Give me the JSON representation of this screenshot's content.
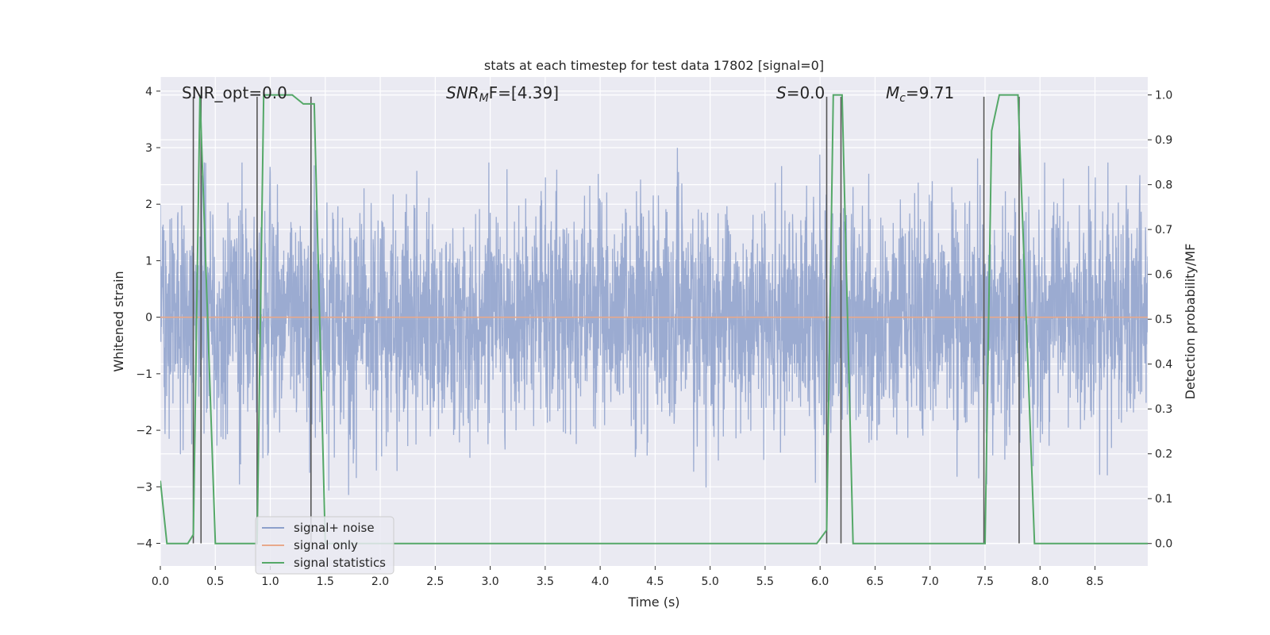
{
  "chart_data": {
    "type": "line",
    "title": "stats at each timestep for test data 17802 [signal=0]",
    "xlabel": "Time (s)",
    "ylabel_left": "Whitened strain",
    "ylabel_right": "Detection probability/MF",
    "xlim": [
      0.0,
      8.98
    ],
    "ylim_left": [
      -4.4,
      4.25
    ],
    "ylim_right": [
      -0.05,
      1.04
    ],
    "x_ticks": [
      0.0,
      0.5,
      1.0,
      1.5,
      2.0,
      2.5,
      3.0,
      3.5,
      4.0,
      4.5,
      5.0,
      5.5,
      6.0,
      6.5,
      7.0,
      7.5,
      8.0,
      8.5
    ],
    "x_tick_labels": [
      "0.0",
      "0.5",
      "1.0",
      "1.5",
      "2.0",
      "2.5",
      "3.0",
      "3.5",
      "4.0",
      "4.5",
      "5.0",
      "5.5",
      "6.0",
      "6.5",
      "7.0",
      "7.5",
      "8.0",
      "8.5"
    ],
    "y_left_ticks": [
      4,
      3,
      2,
      1,
      0,
      -1,
      -2,
      -3,
      -4
    ],
    "y_left_tick_labels": [
      "4",
      "3",
      "2",
      "1",
      "0",
      "−1",
      "−2",
      "−3",
      "−4"
    ],
    "y_right_ticks": [
      1.0,
      0.9,
      0.8,
      0.7,
      0.6,
      0.5,
      0.4,
      0.3,
      0.2,
      0.1,
      0.0
    ],
    "y_right_tick_labels": [
      "1.0",
      "0.9",
      "0.8",
      "0.7",
      "0.6",
      "0.5",
      "0.4",
      "0.3",
      "0.2",
      "0.1",
      "0.0"
    ],
    "grid": true,
    "legend_placement": "lower-left",
    "annotations": {
      "snr_opt": "SNR_opt=0.0",
      "snr_mf_main": "SNR",
      "snr_mf_sub": "M",
      "snr_mf_rest": "F=[4.39]",
      "s_main": "S",
      "s_rest": "=0.0",
      "mc_main": "M",
      "mc_sub": "c",
      "mc_rest": "=9.71"
    },
    "series": [
      {
        "name": "signal+ noise",
        "color": "#8da0cb",
        "kind": "noise",
        "sample_rate_hz": 2048,
        "typical_range": [
          -1.6,
          1.5
        ],
        "max_abs": 4.0
      },
      {
        "name": "signal only",
        "color": "#e8a98b",
        "x": [
          0.0,
          8.98
        ],
        "y": [
          0.0,
          0.0
        ]
      },
      {
        "name": "signal statistics",
        "color": "#55a868",
        "axis": "right",
        "x": [
          0.0,
          0.06,
          0.25,
          0.3,
          0.36,
          0.5,
          0.88,
          0.94,
          1.0,
          1.2,
          1.3,
          1.4,
          1.5,
          5.97,
          6.06,
          6.12,
          6.2,
          6.3,
          7.5,
          7.56,
          7.63,
          7.8,
          7.95,
          8.98
        ],
        "y": [
          0.14,
          0.0,
          0.0,
          0.02,
          1.0,
          0.0,
          0.0,
          1.0,
          1.0,
          1.0,
          0.98,
          0.98,
          0.0,
          0.0,
          0.03,
          1.0,
          1.0,
          0.0,
          0.0,
          0.92,
          1.0,
          1.0,
          0.0,
          0.0
        ]
      }
    ],
    "vertical_markers": [
      0.3,
      0.37,
      0.88,
      1.37,
      6.06,
      6.19,
      7.49,
      7.81
    ]
  }
}
